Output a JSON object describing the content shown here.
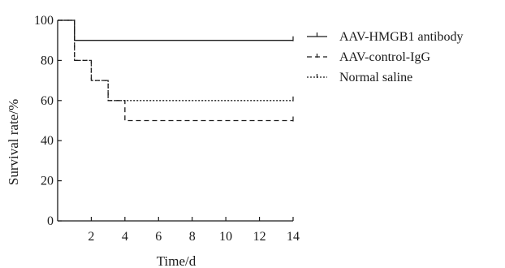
{
  "chart_data": {
    "type": "line",
    "subtype": "step",
    "xlabel": "Time/d",
    "ylabel": "Survival rate/%",
    "xlim": [
      0,
      14
    ],
    "ylim": [
      0,
      100
    ],
    "xticks": [
      2,
      4,
      6,
      8,
      10,
      12,
      14
    ],
    "yticks": [
      0,
      20,
      40,
      60,
      80,
      100
    ],
    "grid": false,
    "legend_position": "right",
    "series": [
      {
        "name": "AAV-HMGB1 antibody",
        "line_style": "solid",
        "marker": "plus",
        "x": [
          0,
          1,
          14
        ],
        "y": [
          100,
          90,
          90
        ]
      },
      {
        "name": "AAV-control-IgG",
        "line_style": "dashed",
        "marker": "tick",
        "x": [
          0,
          1,
          2,
          3,
          4,
          14
        ],
        "y": [
          100,
          80,
          70,
          60,
          50,
          50
        ]
      },
      {
        "name": "Normal saline",
        "line_style": "dotted",
        "marker": "tick",
        "x": [
          0,
          1,
          2,
          3,
          14
        ],
        "y": [
          100,
          80,
          70,
          60,
          60
        ]
      }
    ]
  },
  "colors": {
    "line": "#1a1a1a",
    "axis": "#1a1a1a",
    "background": "#ffffff"
  }
}
